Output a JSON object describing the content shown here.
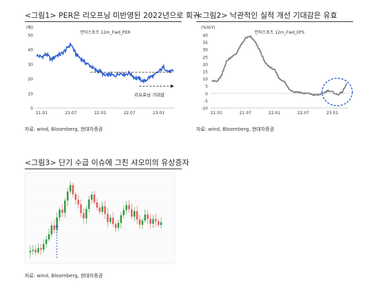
{
  "figures": [
    {
      "title": "<그림1> PER은 리오프닝 미반영된 2022년으로 회귀",
      "source": "자료: wind, Bloomberg, 현대차증권"
    },
    {
      "title": "<그림2> 낙관적인 실적 개선 기대감은 유효",
      "source": "자료: wind, Bloomberg, 현대차증권"
    },
    {
      "title": "<그림3> 단기 수급 이슈에 그친 샤오미의 유상증자",
      "source": "자료: wind, Bloomberg, 현대차증권"
    }
  ],
  "chart_data": [
    {
      "type": "line",
      "title": "",
      "ylabel": "(배)",
      "series": [
        {
          "name": "안타스포츠 12m_Fwd_PER",
          "color": "#2f5fd0"
        }
      ],
      "x_ticks": [
        "21.01",
        "21.07",
        "22.01",
        "22.07",
        "23.01"
      ],
      "ylim": [
        0,
        50
      ],
      "y_ticks": [
        0,
        10,
        20,
        30,
        40,
        50
      ],
      "dates": [
        "20.12",
        "21.01",
        "21.02",
        "21.03",
        "21.04",
        "21.05",
        "21.06",
        "21.07",
        "21.08",
        "21.09",
        "21.10",
        "21.11",
        "21.12",
        "22.01",
        "22.02",
        "22.03",
        "22.04",
        "22.05",
        "22.06",
        "22.07",
        "22.08",
        "22.09",
        "22.10",
        "22.11",
        "22.12",
        "23.01",
        "23.02",
        "23.03",
        "23.04"
      ],
      "values": [
        36,
        35,
        37,
        33,
        36,
        37,
        40,
        44,
        37,
        34,
        31,
        29,
        26,
        25,
        22,
        23,
        22,
        24,
        23,
        24,
        21,
        20,
        18,
        21,
        22,
        25,
        28,
        25,
        25
      ],
      "reference_line": {
        "value": 24.5,
        "style": "dashed"
      },
      "annotation": {
        "text": "리오프닝 기대감",
        "style": "dashed-arrow"
      }
    },
    {
      "type": "line",
      "title": "",
      "ylabel": "(%YoY)",
      "series": [
        {
          "name": "안타스포츠 12m_Fwd_EPS",
          "color": "#7f7f7f"
        }
      ],
      "x_ticks": [
        "21.01",
        "21.07",
        "22.01",
        "22.07",
        "23.01"
      ],
      "ylim": [
        -10,
        40
      ],
      "y_ticks": [
        -10,
        -5,
        0,
        5,
        10,
        15,
        20,
        25,
        30,
        35,
        40
      ],
      "dates": [
        "20.12",
        "21.01",
        "21.02",
        "21.03",
        "21.04",
        "21.05",
        "21.06",
        "21.07",
        "21.08",
        "21.09",
        "21.10",
        "21.11",
        "21.12",
        "22.01",
        "22.02",
        "22.03",
        "22.04",
        "22.05",
        "22.06",
        "22.07",
        "22.08",
        "22.09",
        "22.10",
        "22.11",
        "22.12",
        "23.01",
        "23.02",
        "23.03",
        "23.04"
      ],
      "values": [
        9,
        8,
        12,
        22,
        25,
        27,
        33,
        38,
        39,
        35,
        29,
        21,
        18,
        16,
        10,
        8,
        3,
        1,
        1,
        0,
        0,
        -1,
        -1,
        0,
        2,
        1,
        -1,
        1,
        7
      ],
      "annotation": {
        "shape": "circle",
        "style": "dashed-blue"
      }
    },
    {
      "type": "candlestick",
      "title": "",
      "note": "no labels legible",
      "values": [
        13.2,
        13.5,
        12.8,
        14.0,
        13.6,
        15.2,
        16.5,
        18.0,
        20.5,
        19.2,
        22.8,
        25.0,
        24.1,
        27.6,
        30.2,
        32.0,
        29.4,
        27.8,
        26.5,
        24.0,
        22.5,
        25.2,
        27.9,
        29.3,
        27.1,
        25.6,
        24.4,
        26.0,
        23.8,
        21.5,
        22.7,
        20.9,
        19.8,
        21.2,
        23.4,
        24.9,
        26.3,
        25.1,
        23.0,
        24.6,
        22.2,
        20.7,
        21.9,
        23.6,
        22.4,
        21.0,
        22.3,
        21.7,
        20.6,
        21.4
      ],
      "event_marker": {
        "style": "dashed-arrow",
        "color": "#2f5fd0"
      }
    }
  ]
}
